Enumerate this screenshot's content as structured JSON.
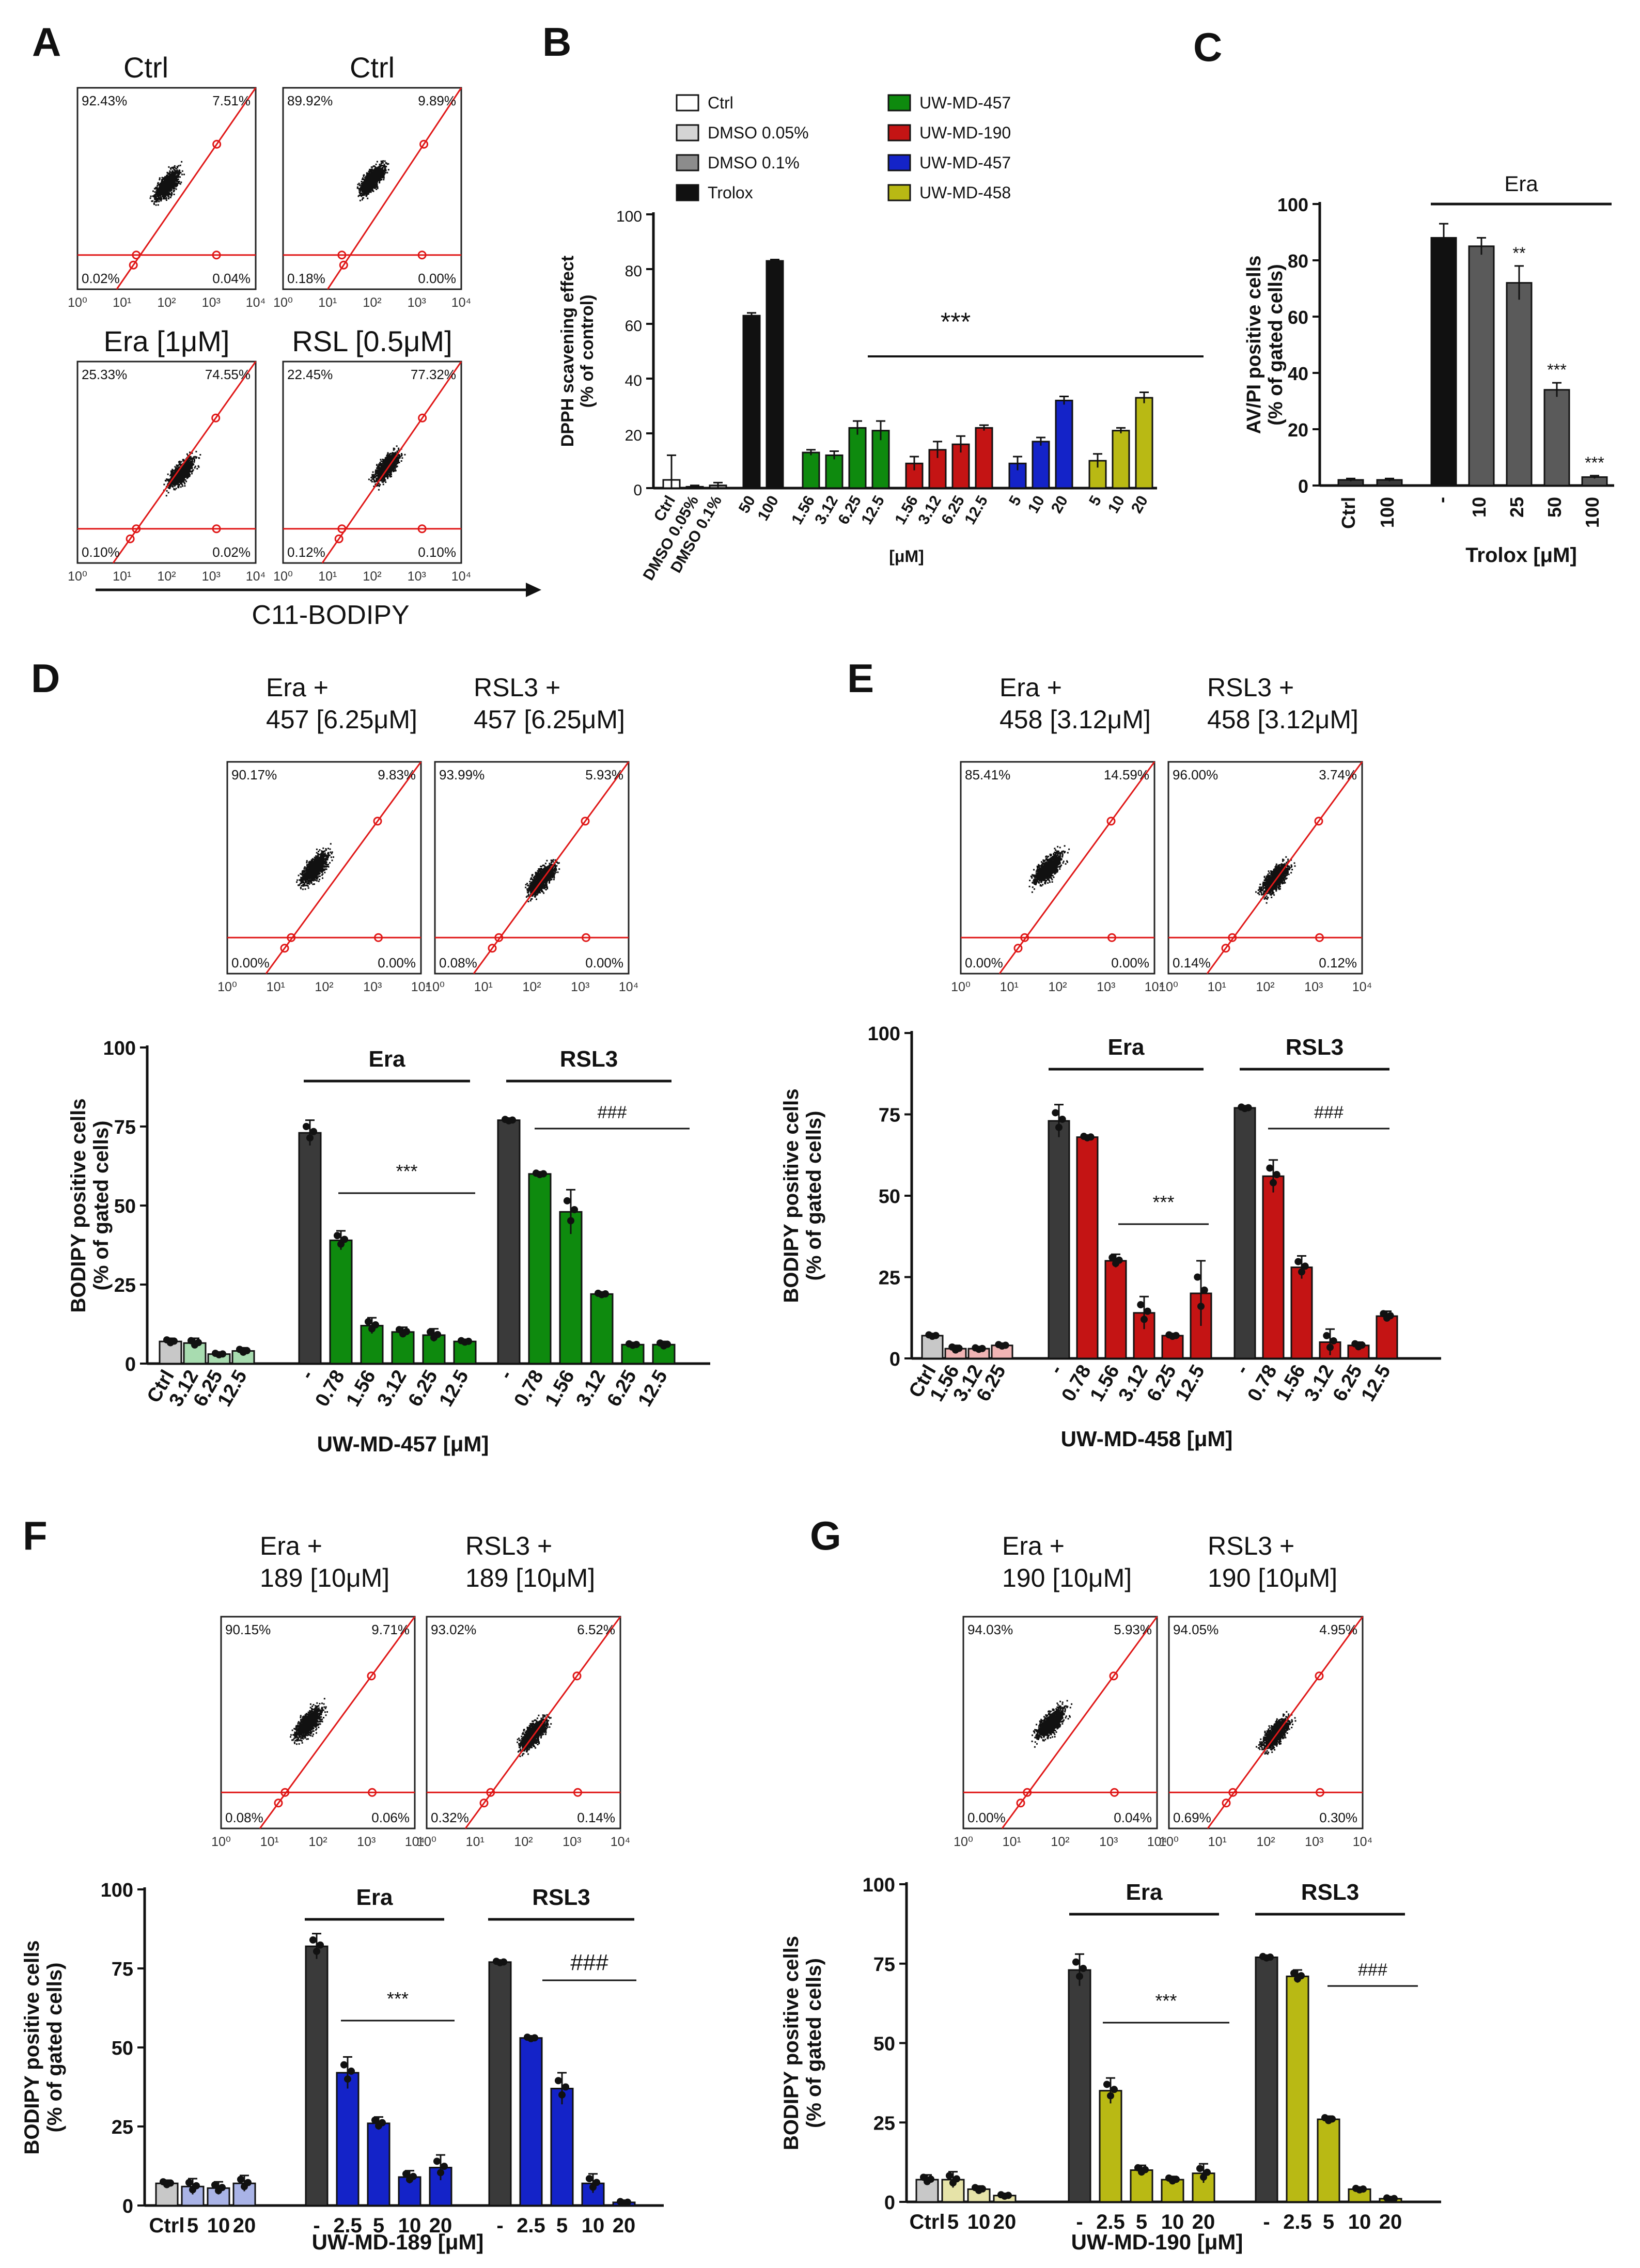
{
  "panel_letters": [
    "A",
    "B",
    "C",
    "D",
    "E",
    "F",
    "G"
  ],
  "colors": {
    "black": "#111111",
    "dark_gray": "#3a3a3a",
    "ctrl_white": "#ffffff",
    "dmso005": "#d4d4d4",
    "dmso01": "#8c8c8c",
    "green": "#0e8a0e",
    "light_green": "#a8dcb0",
    "red": "#c41414",
    "light_red": "#f0b4b4",
    "blue": "#1423c8",
    "light_blue": "#a9b3e6",
    "olive": "#b9b914",
    "light_olive": "#e6e3a8",
    "gate_red": "#e01818"
  },
  "panel_a": {
    "plots": [
      {
        "title": "Ctrl",
        "ul": "92.43%",
        "ur": "7.51%",
        "ll": "0.02%",
        "lr": "0.04%"
      },
      {
        "title": "Ctrl",
        "ul": "89.92%",
        "ur": "9.89%",
        "ll": "0.18%",
        "lr": "0.00%"
      },
      {
        "title": "Era [1μM]",
        "ul": "25.33%",
        "ur": "74.55%",
        "ll": "0.10%",
        "lr": "0.02%"
      },
      {
        "title": "RSL [0.5μM]",
        "ul": "22.45%",
        "ur": "77.32%",
        "ll": "0.12%",
        "lr": "0.10%"
      }
    ],
    "axis_label": "C11-BODIPY"
  },
  "flow_ticks": [
    "10⁰",
    "10¹",
    "10²",
    "10³",
    "10⁴"
  ],
  "chart_data": [
    {
      "id": "B",
      "type": "bar",
      "ylabel": "DPPH scavening effect (% of control)",
      "xlabel": "[μM]",
      "ylim": [
        0,
        100
      ],
      "yticks": [
        0,
        20,
        40,
        60,
        80,
        100
      ],
      "legend": [
        {
          "label": "Ctrl",
          "color": "#ffffff"
        },
        {
          "label": "DMSO 0.05%",
          "color": "#d4d4d4"
        },
        {
          "label": "DMSO 0.1%",
          "color": "#8c8c8c"
        },
        {
          "label": "Trolox",
          "color": "#111111"
        },
        {
          "label": "UW-MD-457",
          "color": "#0e8a0e"
        },
        {
          "label": "UW-MD-190",
          "color": "#c41414"
        },
        {
          "label": "UW-MD-457",
          "color": "#1423c8"
        },
        {
          "label": "UW-MD-458",
          "color": "#b9b914"
        }
      ],
      "significance": "***",
      "bars": [
        {
          "label": "Ctrl",
          "value": 3,
          "err": 9,
          "color": "#ffffff"
        },
        {
          "label": "DMSO 0.05%",
          "value": 0.5,
          "err": 0.5,
          "color": "#d4d4d4"
        },
        {
          "label": "DMSO 0.1%",
          "value": 1,
          "err": 1,
          "color": "#8c8c8c"
        },
        {
          "label": "50",
          "value": 63,
          "err": 1,
          "color": "#111111"
        },
        {
          "label": "100",
          "value": 83,
          "err": 0.5,
          "color": "#111111"
        },
        {
          "label": "1.56",
          "value": 13,
          "err": 1,
          "color": "#0e8a0e"
        },
        {
          "label": "3.12",
          "value": 12,
          "err": 1.5,
          "color": "#0e8a0e"
        },
        {
          "label": "6.25",
          "value": 22,
          "err": 2.5,
          "color": "#0e8a0e"
        },
        {
          "label": "12.5",
          "value": 21,
          "err": 3.5,
          "color": "#0e8a0e"
        },
        {
          "label": "1.56",
          "value": 9,
          "err": 2.5,
          "color": "#c41414"
        },
        {
          "label": "3.12",
          "value": 14,
          "err": 3,
          "color": "#c41414"
        },
        {
          "label": "6.25",
          "value": 16,
          "err": 3,
          "color": "#c41414"
        },
        {
          "label": "12.5",
          "value": 22,
          "err": 1,
          "color": "#c41414"
        },
        {
          "label": "5",
          "value": 9,
          "err": 2.5,
          "color": "#1423c8"
        },
        {
          "label": "10",
          "value": 17,
          "err": 1.5,
          "color": "#1423c8"
        },
        {
          "label": "20",
          "value": 32,
          "err": 1.5,
          "color": "#1423c8"
        },
        {
          "label": "5",
          "value": 10,
          "err": 2.5,
          "color": "#b9b914"
        },
        {
          "label": "10",
          "value": 21,
          "err": 1,
          "color": "#b9b914"
        },
        {
          "label": "20",
          "value": 33,
          "err": 2,
          "color": "#b9b914"
        }
      ]
    },
    {
      "id": "C",
      "type": "bar",
      "ylabel": "AV/PI positive cells (% of gated cells)",
      "xlabel": "Trolox [μM]",
      "group_label": "Era",
      "ylim": [
        0,
        100
      ],
      "yticks": [
        0,
        20,
        40,
        60,
        80,
        100
      ],
      "bars": [
        {
          "label": "Ctrl",
          "value": 2,
          "err": 0.5,
          "color": "#3a3a3a",
          "sig": ""
        },
        {
          "label": "100",
          "value": 2,
          "err": 0.5,
          "color": "#3a3a3a",
          "sig": ""
        },
        {
          "label": "-",
          "value": 88,
          "err": 5,
          "color": "#111111",
          "sig": ""
        },
        {
          "label": "10",
          "value": 85,
          "err": 3,
          "color": "#5a5a5a",
          "sig": ""
        },
        {
          "label": "25",
          "value": 72,
          "err": 6,
          "color": "#5a5a5a",
          "sig": "**"
        },
        {
          "label": "50",
          "value": 34,
          "err": 2.5,
          "color": "#5a5a5a",
          "sig": "***"
        },
        {
          "label": "100",
          "value": 3,
          "err": 0.5,
          "color": "#5a5a5a",
          "sig": "***"
        }
      ]
    },
    {
      "id": "D",
      "type": "bar",
      "ylabel": "BODIPY positive cells (% of gated cells)",
      "xlabel": "UW-MD-457 [μM]",
      "ylim": [
        0,
        100
      ],
      "yticks": [
        0,
        25,
        50,
        75,
        100
      ],
      "groups": [
        {
          "label": "Era",
          "sig": "***"
        },
        {
          "label": "RSL3",
          "sig": "###"
        }
      ],
      "bars": [
        {
          "label": "Ctrl",
          "value": 7,
          "err": 1,
          "color": "#c8c8c8"
        },
        {
          "label": "3.12",
          "value": 6.5,
          "err": 1.5,
          "color": "#a8dcb0"
        },
        {
          "label": "6.25",
          "value": 3,
          "err": 0.5,
          "color": "#a8dcb0"
        },
        {
          "label": "12.5",
          "value": 4,
          "err": 1,
          "color": "#a8dcb0"
        },
        {
          "label": "-",
          "value": 73,
          "err": 4,
          "color": "#3a3a3a"
        },
        {
          "label": "0.78",
          "value": 39,
          "err": 3,
          "color": "#0e8a0e"
        },
        {
          "label": "1.56",
          "value": 12,
          "err": 2.5,
          "color": "#0e8a0e"
        },
        {
          "label": "3.12",
          "value": 10,
          "err": 1.5,
          "color": "#0e8a0e"
        },
        {
          "label": "6.25",
          "value": 9,
          "err": 2,
          "color": "#0e8a0e"
        },
        {
          "label": "12.5",
          "value": 7,
          "err": 0.5,
          "color": "#0e8a0e"
        },
        {
          "label": "-",
          "value": 77,
          "err": 0.5,
          "color": "#3a3a3a"
        },
        {
          "label": "0.78",
          "value": 60,
          "err": 0.5,
          "color": "#0e8a0e"
        },
        {
          "label": "1.56",
          "value": 48,
          "err": 7,
          "color": "#0e8a0e"
        },
        {
          "label": "3.12",
          "value": 22,
          "err": 0.5,
          "color": "#0e8a0e"
        },
        {
          "label": "6.25",
          "value": 6,
          "err": 0.5,
          "color": "#0e8a0e"
        },
        {
          "label": "12.5",
          "value": 6,
          "err": 1,
          "color": "#0e8a0e"
        }
      ]
    },
    {
      "id": "E",
      "type": "bar",
      "ylabel": "BODIPY positive cells (% of gated cells)",
      "xlabel": "UW-MD-458 [μM]",
      "ylim": [
        0,
        100
      ],
      "yticks": [
        0,
        25,
        50,
        75,
        100
      ],
      "groups": [
        {
          "label": "Era",
          "sig": "***"
        },
        {
          "label": "RSL3",
          "sig": "###"
        }
      ],
      "bars": [
        {
          "label": "Ctrl",
          "value": 7,
          "err": 0.5,
          "color": "#c8c8c8"
        },
        {
          "label": "1.56",
          "value": 3,
          "err": 1,
          "color": "#f0b4b4"
        },
        {
          "label": "3.12",
          "value": 3,
          "err": 0.5,
          "color": "#f0b4b4"
        },
        {
          "label": "6.25",
          "value": 4,
          "err": 0.5,
          "color": "#f0b4b4"
        },
        {
          "label": "-",
          "value": 73,
          "err": 5,
          "color": "#3a3a3a"
        },
        {
          "label": "0.78",
          "value": 68,
          "err": 0.5,
          "color": "#c41414"
        },
        {
          "label": "1.56",
          "value": 30,
          "err": 2,
          "color": "#c41414"
        },
        {
          "label": "3.12",
          "value": 14,
          "err": 5,
          "color": "#c41414"
        },
        {
          "label": "6.25",
          "value": 7,
          "err": 0.5,
          "color": "#c41414"
        },
        {
          "label": "12.5",
          "value": 20,
          "err": 10,
          "color": "#c41414"
        },
        {
          "label": "-",
          "value": 77,
          "err": 0.5,
          "color": "#3a3a3a"
        },
        {
          "label": "0.78",
          "value": 56,
          "err": 5,
          "color": "#c41414"
        },
        {
          "label": "1.56",
          "value": 28,
          "err": 3.5,
          "color": "#c41414"
        },
        {
          "label": "3.12",
          "value": 5,
          "err": 4,
          "color": "#c41414"
        },
        {
          "label": "6.25",
          "value": 4,
          "err": 1,
          "color": "#c41414"
        },
        {
          "label": "12.5",
          "value": 13,
          "err": 1.5,
          "color": "#c41414"
        }
      ]
    },
    {
      "id": "F",
      "type": "bar",
      "ylabel": "BODIPY positive cells (% of gated cells)",
      "xlabel": "UW-MD-189 [μM]",
      "ylim": [
        0,
        100
      ],
      "yticks": [
        0,
        25,
        50,
        75,
        100
      ],
      "groups": [
        {
          "label": "Era",
          "sig": "***"
        },
        {
          "label": "RSL3",
          "sig": "###"
        }
      ],
      "bars": [
        {
          "label": "Ctrl",
          "value": 7,
          "err": 1,
          "color": "#c8c8c8"
        },
        {
          "label": "5",
          "value": 6,
          "err": 2.5,
          "color": "#a9b3e6"
        },
        {
          "label": "10",
          "value": 5.5,
          "err": 2,
          "color": "#a9b3e6"
        },
        {
          "label": "20",
          "value": 7,
          "err": 2.5,
          "color": "#a9b3e6"
        },
        {
          "label": "-",
          "value": 82,
          "err": 4,
          "color": "#3a3a3a"
        },
        {
          "label": "2.5",
          "value": 42,
          "err": 5,
          "color": "#1423c8"
        },
        {
          "label": "5",
          "value": 26,
          "err": 2,
          "color": "#1423c8"
        },
        {
          "label": "10",
          "value": 9,
          "err": 2,
          "color": "#1423c8"
        },
        {
          "label": "20",
          "value": 12,
          "err": 4,
          "color": "#1423c8"
        },
        {
          "label": "-",
          "value": 77,
          "err": 0.5,
          "color": "#3a3a3a"
        },
        {
          "label": "2.5",
          "value": 53,
          "err": 0.5,
          "color": "#1423c8"
        },
        {
          "label": "5",
          "value": 37,
          "err": 5,
          "color": "#1423c8"
        },
        {
          "label": "10",
          "value": 7,
          "err": 3,
          "color": "#1423c8"
        },
        {
          "label": "20",
          "value": 1,
          "err": 0.5,
          "color": "#1423c8"
        }
      ]
    },
    {
      "id": "G",
      "type": "bar",
      "ylabel": "BODIPY positive cells (% of gated cells)",
      "xlabel": "UW-MD-190 [μM]",
      "ylim": [
        0,
        100
      ],
      "yticks": [
        0,
        25,
        50,
        75,
        100
      ],
      "groups": [
        {
          "label": "Era",
          "sig": "***"
        },
        {
          "label": "RSL3",
          "sig": "###"
        }
      ],
      "bars": [
        {
          "label": "Ctrl",
          "value": 7,
          "err": 1.5,
          "color": "#c8c8c8"
        },
        {
          "label": "5",
          "value": 7,
          "err": 2.5,
          "color": "#e6e3a8"
        },
        {
          "label": "10",
          "value": 4,
          "err": 1,
          "color": "#e6e3a8"
        },
        {
          "label": "20",
          "value": 2,
          "err": 0.5,
          "color": "#e6e3a8"
        },
        {
          "label": "-",
          "value": 73,
          "err": 5,
          "color": "#3a3a3a"
        },
        {
          "label": "2.5",
          "value": 35,
          "err": 4,
          "color": "#b9b914"
        },
        {
          "label": "5",
          "value": 10,
          "err": 1.5,
          "color": "#b9b914"
        },
        {
          "label": "10",
          "value": 7,
          "err": 1,
          "color": "#b9b914"
        },
        {
          "label": "20",
          "value": 9,
          "err": 3,
          "color": "#b9b914"
        },
        {
          "label": "-",
          "value": 77,
          "err": 0.5,
          "color": "#3a3a3a"
        },
        {
          "label": "2.5",
          "value": 71,
          "err": 2,
          "color": "#b9b914"
        },
        {
          "label": "5",
          "value": 26,
          "err": 1,
          "color": "#b9b914"
        },
        {
          "label": "10",
          "value": 4,
          "err": 0.5,
          "color": "#b9b914"
        },
        {
          "label": "20",
          "value": 1,
          "err": 0.5,
          "color": "#b9b914"
        }
      ]
    }
  ],
  "flow_sets": [
    {
      "id": "D",
      "plots": [
        {
          "title1": "Era +",
          "title2": "457 [6.25μM]",
          "ul": "90.17%",
          "ur": "9.83%",
          "ll": "0.00%",
          "lr": "0.00%"
        },
        {
          "title1": "RSL3 +",
          "title2": "457 [6.25μM]",
          "ul": "93.99%",
          "ur": "5.93%",
          "ll": "0.08%",
          "lr": "0.00%"
        }
      ]
    },
    {
      "id": "E",
      "plots": [
        {
          "title1": "Era +",
          "title2": "458 [3.12μM]",
          "ul": "85.41%",
          "ur": "14.59%",
          "ll": "0.00%",
          "lr": "0.00%"
        },
        {
          "title1": "RSL3 +",
          "title2": "458 [3.12μM]",
          "ul": "96.00%",
          "ur": "3.74%",
          "ll": "0.14%",
          "lr": "0.12%"
        }
      ]
    },
    {
      "id": "F",
      "plots": [
        {
          "title1": "Era +",
          "title2": "189 [10μM]",
          "ul": "90.15%",
          "ur": "9.71%",
          "ll": "0.08%",
          "lr": "0.06%"
        },
        {
          "title1": "RSL3 +",
          "title2": "189 [10μM]",
          "ul": "93.02%",
          "ur": "6.52%",
          "ll": "0.32%",
          "lr": "0.14%"
        }
      ]
    },
    {
      "id": "G",
      "plots": [
        {
          "title1": "Era +",
          "title2": "190 [10μM]",
          "ul": "94.03%",
          "ur": "5.93%",
          "ll": "0.00%",
          "lr": "0.04%"
        },
        {
          "title1": "RSL3 +",
          "title2": "190 [10μM]",
          "ul": "94.05%",
          "ur": "4.95%",
          "ll": "0.69%",
          "lr": "0.30%"
        }
      ]
    }
  ]
}
